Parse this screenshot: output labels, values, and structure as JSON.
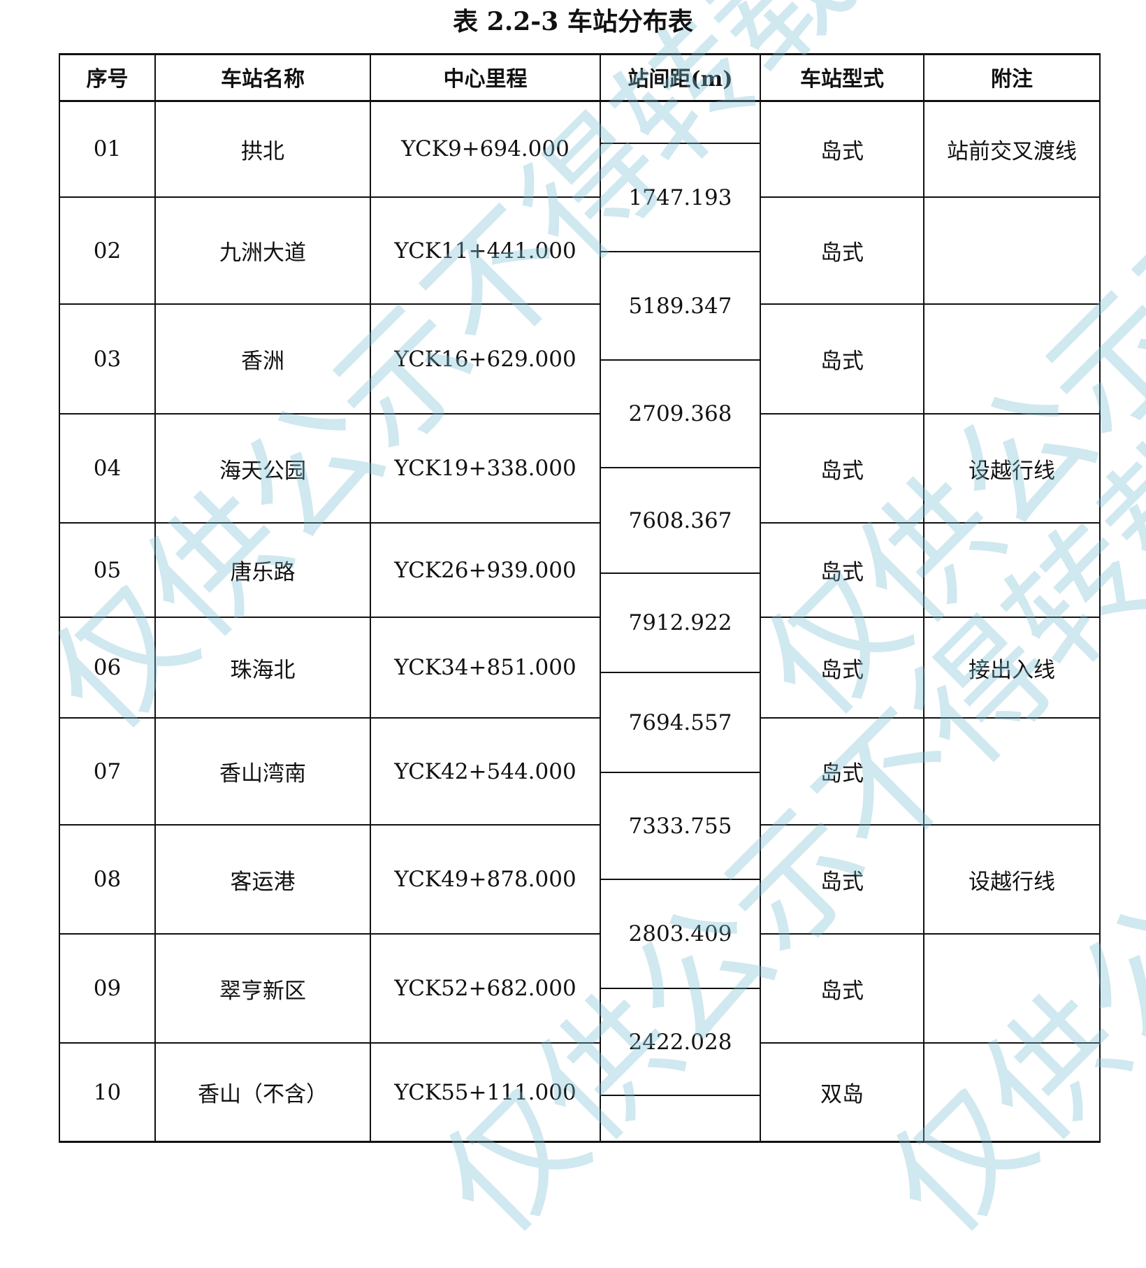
{
  "title": "表 2.2-3  车站分布表",
  "headers": [
    "序号",
    "车站名称",
    "中心里程",
    "站间距(m)",
    "车站型式",
    "附注"
  ],
  "stations": [
    {
      "no": "01",
      "name": "拱北",
      "mileage": "YCK9+694.000",
      "type": "岛式",
      "note": "站前交叉渡线"
    },
    {
      "no": "02",
      "name": "九洲大道",
      "mileage": "YCK11+441.000",
      "type": "岛式",
      "note": ""
    },
    {
      "no": "03",
      "name": "香洲",
      "mileage": "YCK16+629.000",
      "type": "岛式",
      "note": ""
    },
    {
      "no": "04",
      "name": "海天公园",
      "mileage": "YCK19+338.000",
      "type": "岛式",
      "note": "设越行线"
    },
    {
      "no": "05",
      "name": "唐乐路",
      "mileage": "YCK26+939.000",
      "type": "岛式",
      "note": ""
    },
    {
      "no": "06",
      "name": "珠海北",
      "mileage": "YCK34+851.000",
      "type": "岛式",
      "note": "接出入线"
    },
    {
      "no": "07",
      "name": "香山湾南",
      "mileage": "YCK42+544.000",
      "type": "岛式",
      "note": ""
    },
    {
      "no": "08",
      "name": "客运港",
      "mileage": "YCK49+878.000",
      "type": "岛式",
      "note": "设越行线"
    },
    {
      "no": "09",
      "name": "翠亨新区",
      "mileage": "YCK52+682.000",
      "type": "岛式",
      "note": ""
    },
    {
      "no": "10",
      "name": "香山（不含）",
      "mileage": "YCK55+111.000",
      "type": "双岛",
      "note": ""
    }
  ],
  "distances": [
    "1747.193",
    "5189.347",
    "2709.368",
    "7608.367",
    "7912.922",
    "7694.557",
    "7333.755",
    "2803.409",
    "2422.028"
  ],
  "watermark": "仅供公示不得转载"
}
